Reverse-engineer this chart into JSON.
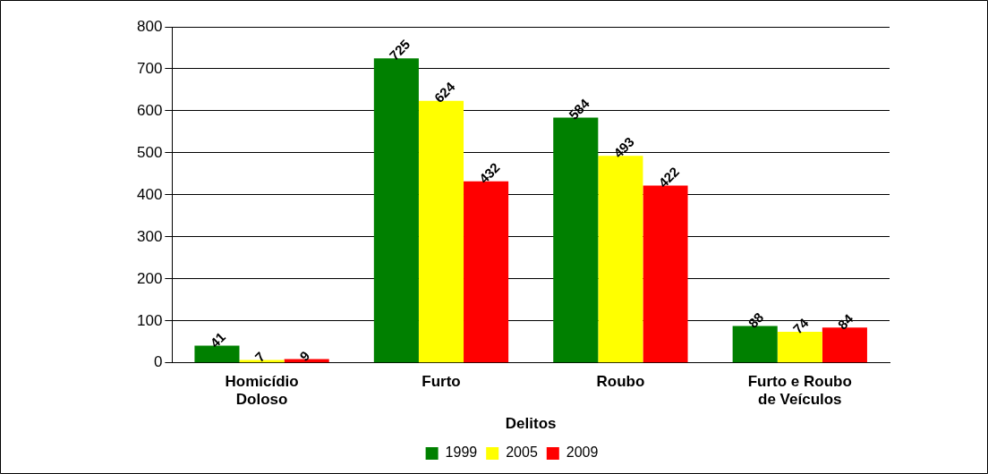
{
  "chart_data": {
    "type": "bar",
    "xlabel": "Delitos",
    "categories": [
      "Homicídio Doloso",
      "Furto",
      "Roubo",
      "Furto e Roubo de Veículos"
    ],
    "series": [
      {
        "name": "1999",
        "color": "#008000",
        "values": [
          41,
          725,
          584,
          88
        ]
      },
      {
        "name": "2005",
        "color": "#ffff00",
        "values": [
          7,
          624,
          493,
          74
        ]
      },
      {
        "name": "2009",
        "color": "#ff0000",
        "values": [
          9,
          432,
          422,
          84
        ]
      }
    ],
    "ylim": [
      0,
      800
    ],
    "yticks": [
      0,
      100,
      200,
      300,
      400,
      500,
      600,
      700,
      800
    ],
    "grid": "y",
    "legend": "bottom",
    "data_labels": true
  }
}
